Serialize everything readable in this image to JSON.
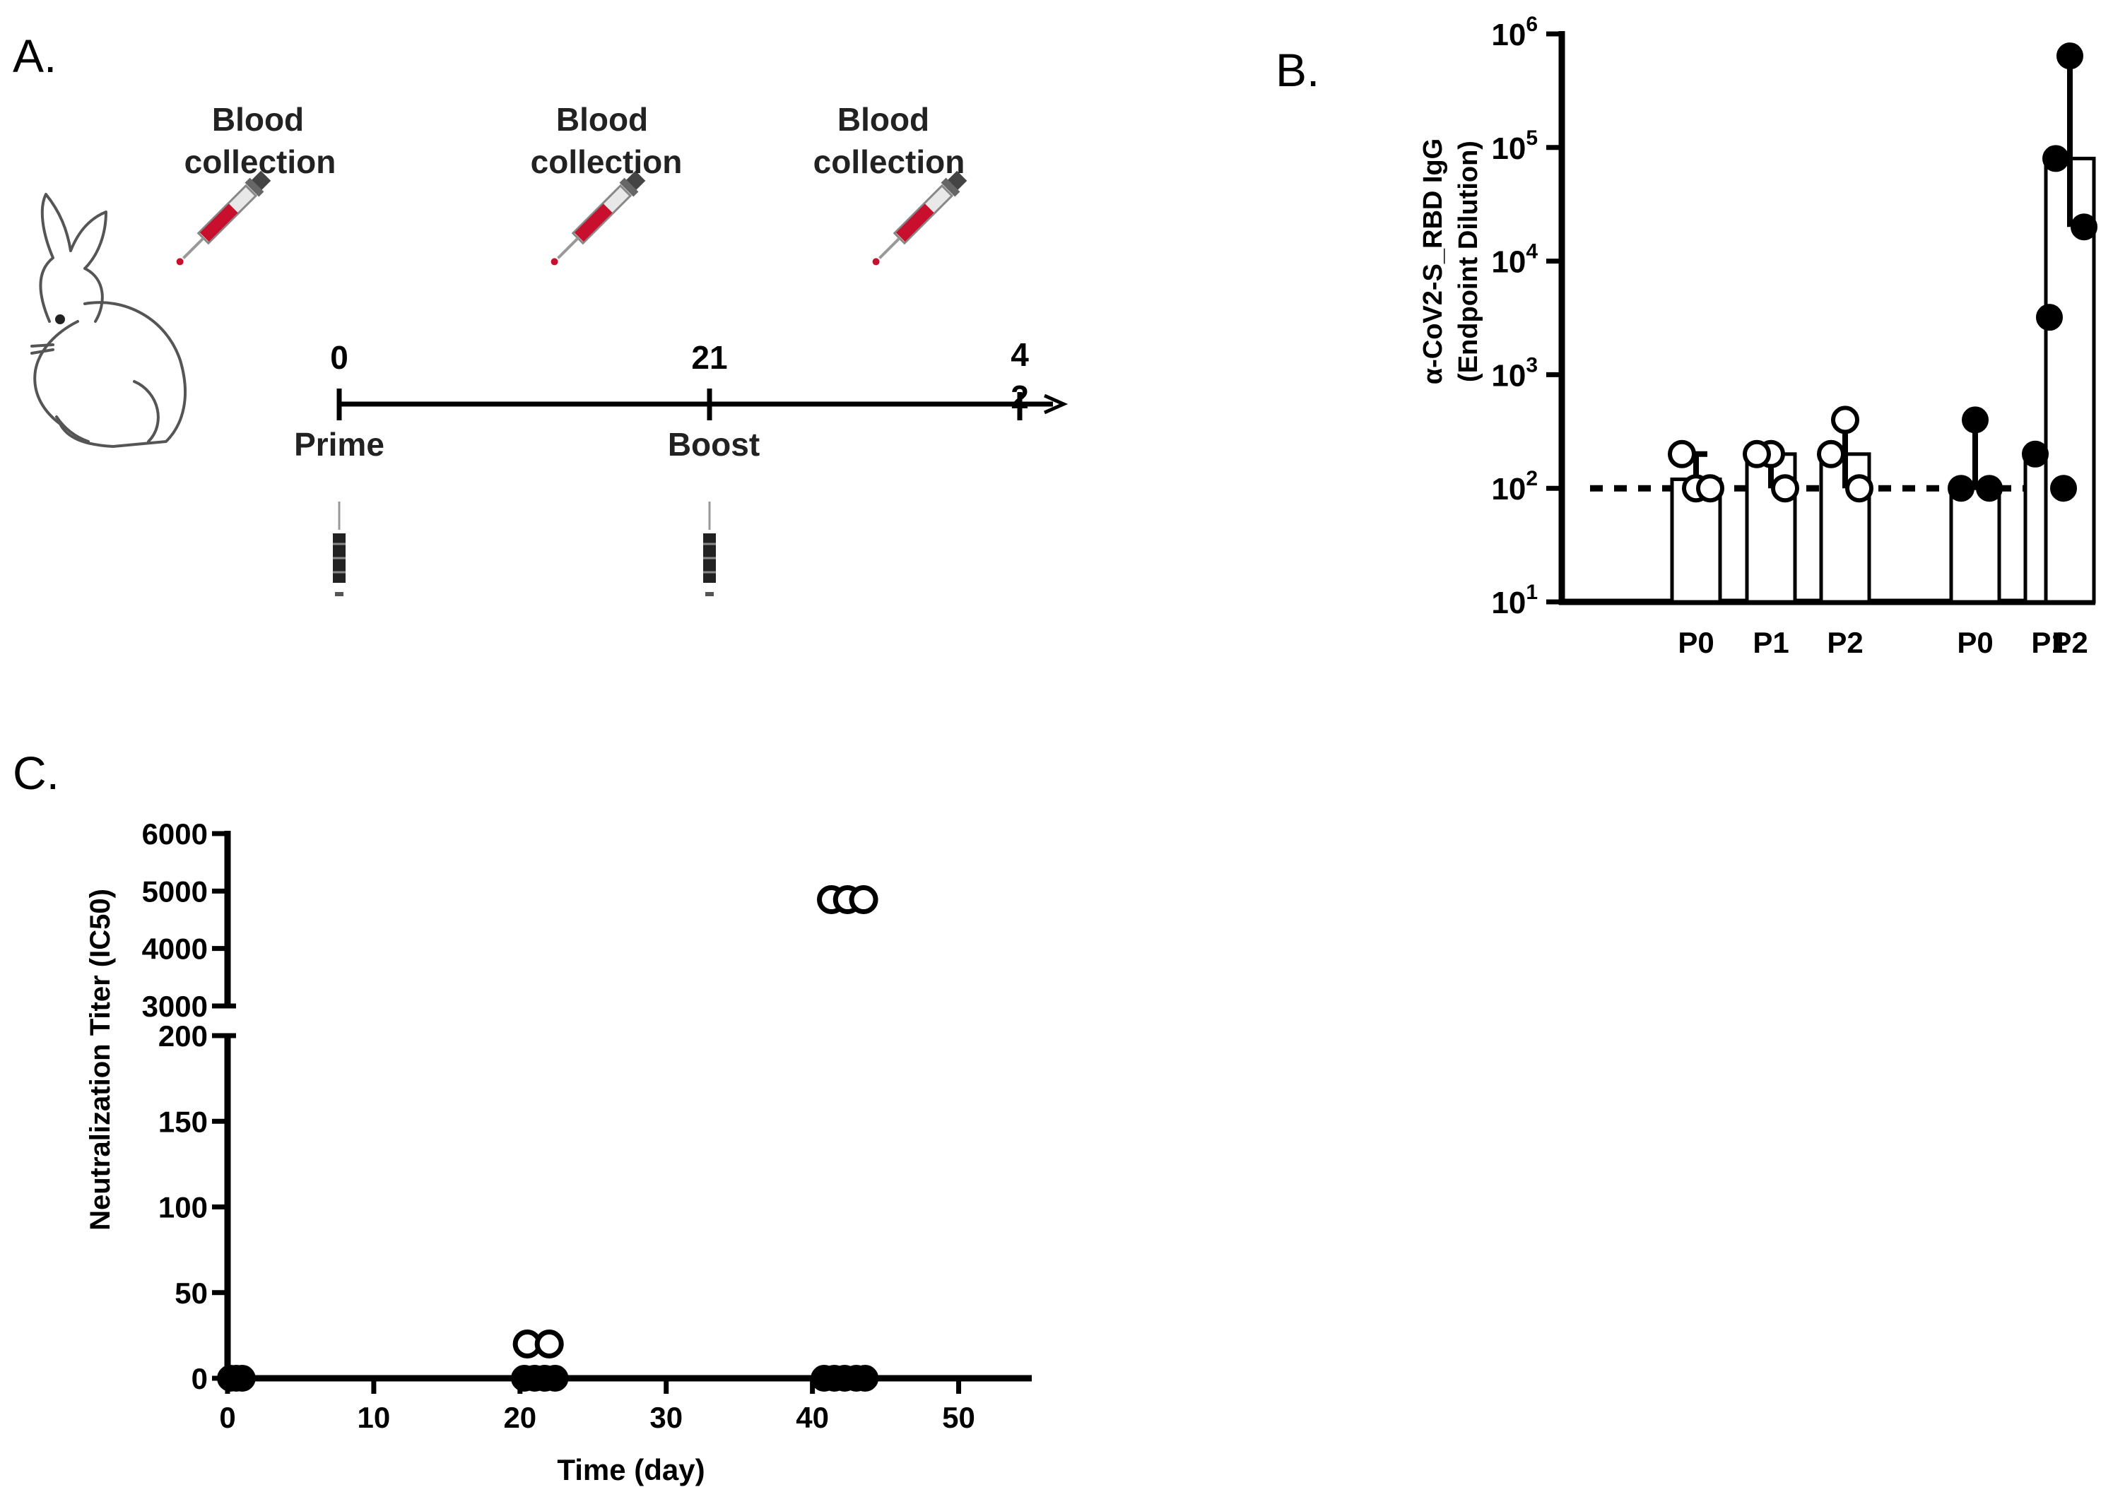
{
  "panels": {
    "a": {
      "label": "A."
    },
    "b": {
      "label": "B."
    },
    "c": {
      "label": "C."
    }
  },
  "schedule": {
    "blood_label_1": "Blood",
    "blood_label_2": "collection",
    "days": [
      "0",
      "21",
      "4",
      "2"
    ],
    "events": [
      "Prime",
      "Boost"
    ]
  },
  "colors": {
    "ink": "#000000",
    "syringe": "#c8102e"
  },
  "chart_data": [
    {
      "id": "B",
      "type": "bar",
      "title": "",
      "ylabel_1": "α-CoV2-S_RBD IgG",
      "ylabel_2": "(Endpoint Dilution)",
      "yscale": "log",
      "ylim": [
        10,
        1000000
      ],
      "ytick_values": [
        10,
        100,
        1000,
        10000,
        100000,
        1000000
      ],
      "ytick_labels": [
        {
          "base": "10",
          "exp": "1"
        },
        {
          "base": "10",
          "exp": "2"
        },
        {
          "base": "10",
          "exp": "3"
        },
        {
          "base": "10",
          "exp": "4"
        },
        {
          "base": "10",
          "exp": "5"
        },
        {
          "base": "10",
          "exp": "6"
        }
      ],
      "detection_limit": 100,
      "categories": [
        "P0",
        "P1",
        "P2",
        "P0",
        "P1",
        "P2"
      ],
      "groups": [
        {
          "marker": "open",
          "bars": [
            {
              "value": 120,
              "points": [
                100,
                200,
                100
              ],
              "err_low": 100,
              "err_high": 200
            },
            {
              "value": 200,
              "points": [
                200,
                200,
                100
              ],
              "err_low": 100,
              "err_high": 200
            },
            {
              "value": 200,
              "points": [
                400,
                200,
                100
              ],
              "err_low": 100,
              "err_high": 400
            }
          ]
        },
        {
          "marker": "filled",
          "bars": [
            {
              "value": 100,
              "points": [
                400,
                100,
                100
              ],
              "err_low": 100,
              "err_high": 400
            },
            {
              "value": 200,
              "points": [
                3200,
                200,
                100
              ],
              "err_low": 100,
              "err_high": 3200
            },
            {
              "value": 80000,
              "points": [
                640000,
                80000,
                20000
              ],
              "err_low": 20000,
              "err_high": 640000
            }
          ]
        }
      ]
    },
    {
      "id": "C",
      "type": "scatter",
      "xlabel": "Time (day)",
      "ylabel": "Neutralization Titer (IC50)",
      "xlim": [
        0,
        55
      ],
      "xticks": [
        0,
        10,
        20,
        30,
        40,
        50
      ],
      "lower_ylim": [
        0,
        200
      ],
      "lower_yticks": [
        0,
        50,
        100,
        150,
        200
      ],
      "upper_ylim": [
        3000,
        6000
      ],
      "upper_yticks": [
        3000,
        4000,
        5000,
        6000
      ],
      "series": [
        {
          "name": "open",
          "marker": "open",
          "points": [
            {
              "x": 20.5,
              "y": 20
            },
            {
              "x": 22.0,
              "y": 20
            },
            {
              "x": 41.3,
              "y": 4850
            },
            {
              "x": 42.4,
              "y": 4850
            },
            {
              "x": 43.5,
              "y": 4850
            }
          ]
        },
        {
          "name": "filled",
          "marker": "filled",
          "points": [
            {
              "x": 0.2,
              "y": 0
            },
            {
              "x": 0.6,
              "y": 0
            },
            {
              "x": 1.0,
              "y": 0
            },
            {
              "x": 20.3,
              "y": 0
            },
            {
              "x": 21.0,
              "y": 0
            },
            {
              "x": 21.7,
              "y": 0
            },
            {
              "x": 22.4,
              "y": 0
            },
            {
              "x": 40.8,
              "y": 0
            },
            {
              "x": 41.5,
              "y": 0
            },
            {
              "x": 42.2,
              "y": 0
            },
            {
              "x": 43.0,
              "y": 0
            },
            {
              "x": 43.6,
              "y": 0
            }
          ]
        }
      ]
    }
  ]
}
